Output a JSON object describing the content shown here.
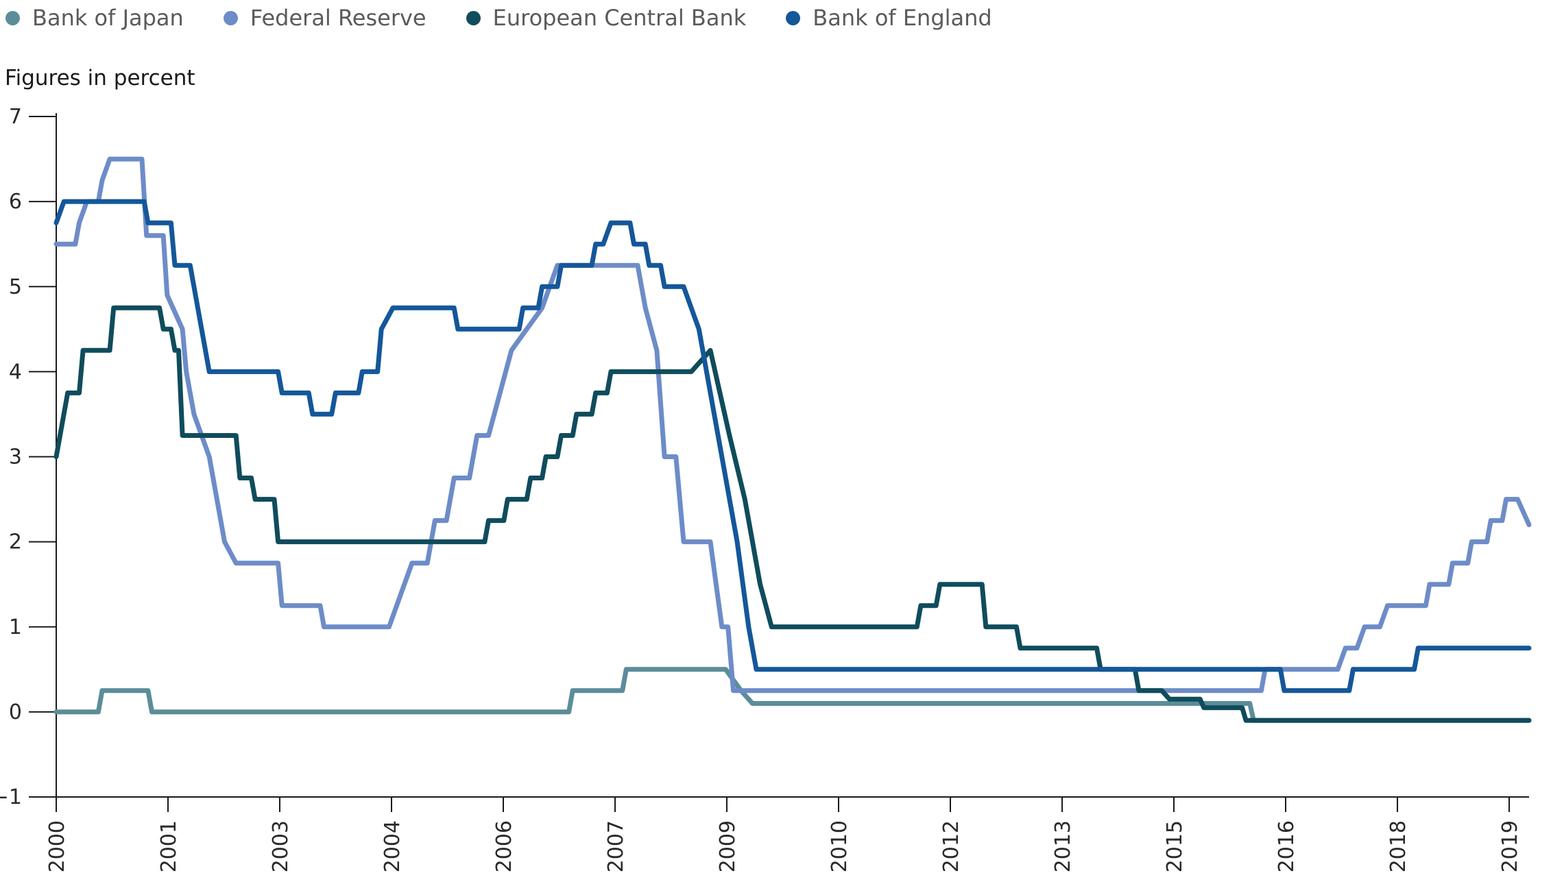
{
  "chart_data": {
    "type": "line",
    "ylabel": "Figures in percent",
    "ylim": [
      -1,
      7
    ],
    "yticks": [
      -1,
      0,
      1,
      2,
      3,
      4,
      5,
      6,
      7
    ],
    "xlim": [
      2000,
      2019.25
    ],
    "xticks": [
      "2000",
      "2001",
      "2003",
      "2004",
      "2006",
      "2007",
      "2009",
      "2010",
      "2012",
      "2013",
      "2015",
      "2016",
      "2018",
      "2019"
    ],
    "grid": false,
    "legend_position": "top-left",
    "series": [
      {
        "name": "Bank of Japan",
        "color": "#5b8d99",
        "points": [
          [
            0,
            0
          ],
          [
            0.55,
            0
          ],
          [
            0.6,
            0.25
          ],
          [
            1.2,
            0.25
          ],
          [
            1.25,
            0
          ],
          [
            6.7,
            0
          ],
          [
            6.75,
            0.25
          ],
          [
            7.4,
            0.25
          ],
          [
            7.45,
            0.5
          ],
          [
            8.75,
            0.5
          ],
          [
            8.95,
            0.25
          ],
          [
            9.1,
            0.1
          ],
          [
            15.6,
            0.1
          ],
          [
            15.65,
            -0.1
          ],
          [
            19.25,
            -0.1
          ]
        ]
      },
      {
        "name": "Federal Reserve",
        "color": "#6d8cc8",
        "points": [
          [
            0,
            5.5
          ],
          [
            0.25,
            5.5
          ],
          [
            0.3,
            5.75
          ],
          [
            0.4,
            6.0
          ],
          [
            0.55,
            6.0
          ],
          [
            0.6,
            6.25
          ],
          [
            0.7,
            6.5
          ],
          [
            1.12,
            6.5
          ],
          [
            1.18,
            5.6
          ],
          [
            1.4,
            5.6
          ],
          [
            1.45,
            4.9
          ],
          [
            1.55,
            4.7
          ],
          [
            1.65,
            4.5
          ],
          [
            1.7,
            4.0
          ],
          [
            1.8,
            3.5
          ],
          [
            2.0,
            3.0
          ],
          [
            2.2,
            2.0
          ],
          [
            2.35,
            1.75
          ],
          [
            2.9,
            1.75
          ],
          [
            2.95,
            1.25
          ],
          [
            3.45,
            1.25
          ],
          [
            3.5,
            1.0
          ],
          [
            4.35,
            1.0
          ],
          [
            4.55,
            1.5
          ],
          [
            4.65,
            1.75
          ],
          [
            4.85,
            1.75
          ],
          [
            4.95,
            2.25
          ],
          [
            5.1,
            2.25
          ],
          [
            5.2,
            2.75
          ],
          [
            5.4,
            2.75
          ],
          [
            5.5,
            3.25
          ],
          [
            5.65,
            3.25
          ],
          [
            5.95,
            4.25
          ],
          [
            6.15,
            4.5
          ],
          [
            6.35,
            4.75
          ],
          [
            6.45,
            5.0
          ],
          [
            6.55,
            5.25
          ],
          [
            7.6,
            5.25
          ],
          [
            7.7,
            4.75
          ],
          [
            7.85,
            4.25
          ],
          [
            7.95,
            3.0
          ],
          [
            8.1,
            3.0
          ],
          [
            8.2,
            2.0
          ],
          [
            8.55,
            2.0
          ],
          [
            8.7,
            1.0
          ],
          [
            8.78,
            1.0
          ],
          [
            8.85,
            0.25
          ],
          [
            15.75,
            0.25
          ],
          [
            15.8,
            0.5
          ],
          [
            16.75,
            0.5
          ],
          [
            16.85,
            0.75
          ],
          [
            17.0,
            0.75
          ],
          [
            17.1,
            1.0
          ],
          [
            17.3,
            1.0
          ],
          [
            17.4,
            1.25
          ],
          [
            17.9,
            1.25
          ],
          [
            17.95,
            1.5
          ],
          [
            18.2,
            1.5
          ],
          [
            18.25,
            1.75
          ],
          [
            18.45,
            1.75
          ],
          [
            18.5,
            2.0
          ],
          [
            18.7,
            2.0
          ],
          [
            18.75,
            2.25
          ],
          [
            18.9,
            2.25
          ],
          [
            18.95,
            2.5
          ],
          [
            19.05,
            2.5
          ],
          [
            19.1,
            2.5
          ],
          [
            19.25,
            2.2
          ]
        ]
      },
      {
        "name": "European Central Bank",
        "color": "#0f4c5c",
        "points": [
          [
            0,
            3.0
          ],
          [
            0.15,
            3.75
          ],
          [
            0.3,
            3.75
          ],
          [
            0.35,
            4.25
          ],
          [
            0.7,
            4.25
          ],
          [
            0.75,
            4.75
          ],
          [
            1.35,
            4.75
          ],
          [
            1.4,
            4.5
          ],
          [
            1.5,
            4.5
          ],
          [
            1.55,
            4.25
          ],
          [
            1.6,
            4.25
          ],
          [
            1.65,
            3.25
          ],
          [
            2.35,
            3.25
          ],
          [
            2.4,
            2.75
          ],
          [
            2.55,
            2.75
          ],
          [
            2.6,
            2.5
          ],
          [
            2.85,
            2.5
          ],
          [
            2.9,
            2.0
          ],
          [
            5.6,
            2.0
          ],
          [
            5.65,
            2.25
          ],
          [
            5.85,
            2.25
          ],
          [
            5.9,
            2.5
          ],
          [
            6.15,
            2.5
          ],
          [
            6.2,
            2.75
          ],
          [
            6.35,
            2.75
          ],
          [
            6.4,
            3.0
          ],
          [
            6.55,
            3.0
          ],
          [
            6.6,
            3.25
          ],
          [
            6.75,
            3.25
          ],
          [
            6.8,
            3.5
          ],
          [
            7.0,
            3.5
          ],
          [
            7.05,
            3.75
          ],
          [
            7.2,
            3.75
          ],
          [
            7.25,
            4.0
          ],
          [
            7.9,
            4.0
          ],
          [
            8.3,
            4.0
          ],
          [
            8.55,
            4.25
          ],
          [
            8.8,
            3.25
          ],
          [
            9.0,
            2.5
          ],
          [
            9.2,
            1.5
          ],
          [
            9.35,
            1.0
          ],
          [
            11.25,
            1.0
          ],
          [
            11.3,
            1.25
          ],
          [
            11.5,
            1.25
          ],
          [
            11.55,
            1.5
          ],
          [
            12.1,
            1.5
          ],
          [
            12.15,
            1.0
          ],
          [
            12.55,
            1.0
          ],
          [
            12.6,
            0.75
          ],
          [
            13.6,
            0.75
          ],
          [
            13.65,
            0.5
          ],
          [
            14.1,
            0.5
          ],
          [
            14.15,
            0.25
          ],
          [
            14.45,
            0.25
          ],
          [
            14.55,
            0.15
          ],
          [
            14.95,
            0.15
          ],
          [
            15.0,
            0.05
          ],
          [
            15.5,
            0.05
          ],
          [
            15.55,
            -0.1
          ],
          [
            19.25,
            -0.1
          ]
        ]
      },
      {
        "name": "Bank of England",
        "color": "#14579a",
        "points": [
          [
            0,
            5.75
          ],
          [
            0.1,
            6.0
          ],
          [
            1.15,
            6.0
          ],
          [
            1.2,
            5.75
          ],
          [
            1.5,
            5.75
          ],
          [
            1.55,
            5.25
          ],
          [
            1.75,
            5.25
          ],
          [
            2.0,
            4.0
          ],
          [
            2.9,
            4.0
          ],
          [
            2.95,
            3.75
          ],
          [
            3.3,
            3.75
          ],
          [
            3.35,
            3.5
          ],
          [
            3.6,
            3.5
          ],
          [
            3.65,
            3.75
          ],
          [
            3.95,
            3.75
          ],
          [
            4.0,
            4.0
          ],
          [
            4.2,
            4.0
          ],
          [
            4.25,
            4.5
          ],
          [
            4.4,
            4.75
          ],
          [
            5.2,
            4.75
          ],
          [
            5.25,
            4.5
          ],
          [
            6.05,
            4.5
          ],
          [
            6.1,
            4.75
          ],
          [
            6.3,
            4.75
          ],
          [
            6.35,
            5.0
          ],
          [
            6.55,
            5.0
          ],
          [
            6.6,
            5.25
          ],
          [
            7.0,
            5.25
          ],
          [
            7.05,
            5.5
          ],
          [
            7.15,
            5.5
          ],
          [
            7.25,
            5.75
          ],
          [
            7.5,
            5.75
          ],
          [
            7.55,
            5.5
          ],
          [
            7.7,
            5.5
          ],
          [
            7.75,
            5.25
          ],
          [
            7.9,
            5.25
          ],
          [
            7.95,
            5.0
          ],
          [
            8.2,
            5.0
          ],
          [
            8.4,
            4.5
          ],
          [
            8.9,
            2.0
          ],
          [
            9.05,
            1.0
          ],
          [
            9.15,
            0.5
          ],
          [
            16.0,
            0.5
          ],
          [
            16.05,
            0.25
          ],
          [
            16.9,
            0.25
          ],
          [
            16.95,
            0.5
          ],
          [
            17.75,
            0.5
          ],
          [
            17.8,
            0.75
          ],
          [
            19.25,
            0.75
          ]
        ]
      }
    ]
  }
}
